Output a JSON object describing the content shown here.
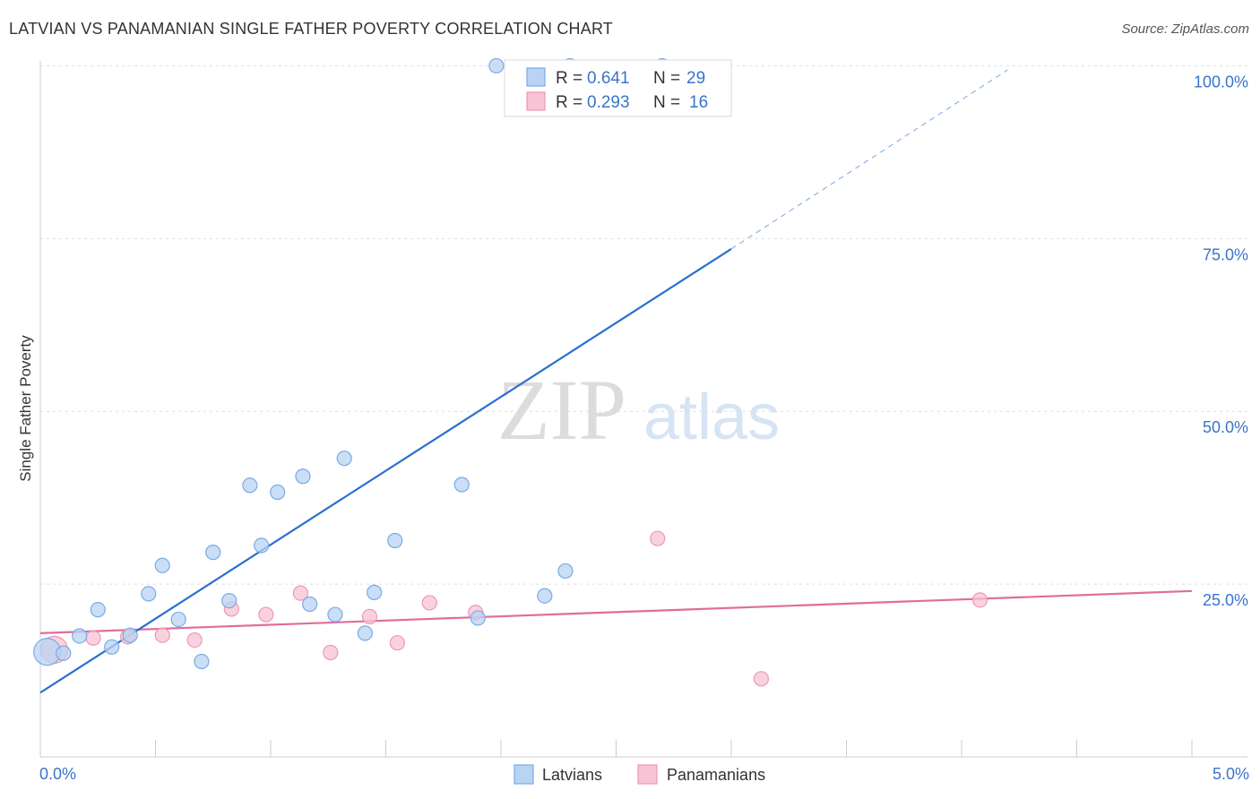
{
  "title": "LATVIAN VS PANAMANIAN SINGLE FATHER POVERTY CORRELATION CHART",
  "source": "Source: ZipAtlas.com",
  "watermark": {
    "zip": "ZIP",
    "atlas": "atlas"
  },
  "colors": {
    "latvian_fill": "#b8d3f3",
    "latvian_stroke": "#7aaae6",
    "latvian_line": "#2a6fd0",
    "panamanian_fill": "#f8c3d4",
    "panamanian_stroke": "#ee97b3",
    "panamanian_line": "#e06e98",
    "grid": "#dedede",
    "axis_text": "#3a74c9"
  },
  "legend_top": {
    "latvian": {
      "r_label": "R =",
      "r_value": "0.641",
      "n_label": "N =",
      "n_value": "29"
    },
    "panamanian": {
      "r_label": "R =",
      "r_value": "0.293",
      "n_label": "N =",
      "n_value": "16"
    }
  },
  "chart_data": {
    "type": "scatter",
    "title": "LATVIAN VS PANAMANIAN SINGLE FATHER POVERTY CORRELATION CHART",
    "xlabel": "",
    "ylabel": "Single Father Poverty",
    "xlim": [
      0,
      5
    ],
    "ylim": [
      0,
      102
    ],
    "x_tick_labels": [
      "0.0%",
      "5.0%"
    ],
    "y_ticks": [
      25,
      50,
      75,
      100
    ],
    "y_tick_labels": [
      "25.0%",
      "50.0%",
      "75.0%",
      "100.0%"
    ],
    "grid": true,
    "legend": [
      "Latvians",
      "Panamanians"
    ],
    "series": [
      {
        "name": "Latvians",
        "r": 0.641,
        "n": 29,
        "points": [
          {
            "x": 0.03,
            "y": 15.2,
            "size": "large"
          },
          {
            "x": 0.1,
            "y": 15.0
          },
          {
            "x": 0.17,
            "y": 17.5
          },
          {
            "x": 0.25,
            "y": 21.3
          },
          {
            "x": 0.31,
            "y": 15.9
          },
          {
            "x": 0.39,
            "y": 17.6
          },
          {
            "x": 0.47,
            "y": 23.6
          },
          {
            "x": 0.53,
            "y": 27.7
          },
          {
            "x": 0.6,
            "y": 19.9
          },
          {
            "x": 0.7,
            "y": 13.8
          },
          {
            "x": 0.75,
            "y": 29.6
          },
          {
            "x": 0.82,
            "y": 22.6
          },
          {
            "x": 0.91,
            "y": 39.3
          },
          {
            "x": 0.96,
            "y": 30.6
          },
          {
            "x": 1.03,
            "y": 38.3
          },
          {
            "x": 1.14,
            "y": 40.6
          },
          {
            "x": 1.17,
            "y": 22.1
          },
          {
            "x": 1.28,
            "y": 20.6
          },
          {
            "x": 1.32,
            "y": 43.2
          },
          {
            "x": 1.41,
            "y": 17.9
          },
          {
            "x": 1.45,
            "y": 23.8
          },
          {
            "x": 1.54,
            "y": 31.3
          },
          {
            "x": 1.83,
            "y": 39.4
          },
          {
            "x": 1.9,
            "y": 20.1
          },
          {
            "x": 1.98,
            "y": 100.0
          },
          {
            "x": 2.19,
            "y": 23.3
          },
          {
            "x": 2.28,
            "y": 26.9
          },
          {
            "x": 2.3,
            "y": 100.0
          },
          {
            "x": 2.7,
            "y": 100.0
          }
        ],
        "trend": {
          "x0": 0,
          "y0": 9.3,
          "x1": 3.0,
          "y1": 73.5,
          "dashed_to_x": 4.2,
          "dashed_to_y": 99.4
        }
      },
      {
        "name": "Panamanians",
        "r": 0.293,
        "n": 16,
        "points": [
          {
            "x": 0.06,
            "y": 15.5,
            "size": "large"
          },
          {
            "x": 0.23,
            "y": 17.2
          },
          {
            "x": 0.38,
            "y": 17.4
          },
          {
            "x": 0.53,
            "y": 17.6
          },
          {
            "x": 0.67,
            "y": 16.9
          },
          {
            "x": 0.83,
            "y": 21.4
          },
          {
            "x": 0.98,
            "y": 20.6
          },
          {
            "x": 1.13,
            "y": 23.7
          },
          {
            "x": 1.26,
            "y": 15.1
          },
          {
            "x": 1.43,
            "y": 20.3
          },
          {
            "x": 1.55,
            "y": 16.5
          },
          {
            "x": 1.69,
            "y": 22.3
          },
          {
            "x": 1.89,
            "y": 20.9
          },
          {
            "x": 2.68,
            "y": 31.6
          },
          {
            "x": 3.13,
            "y": 11.3
          },
          {
            "x": 4.08,
            "y": 22.7
          }
        ],
        "trend": {
          "x0": 0,
          "y0": 17.9,
          "x1": 5.0,
          "y1": 24.0
        }
      }
    ]
  }
}
